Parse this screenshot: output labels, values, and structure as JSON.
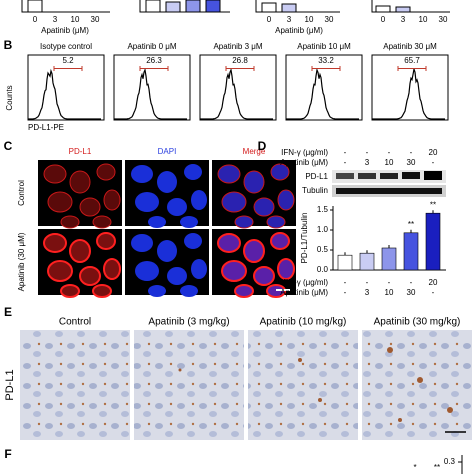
{
  "top_panels": [
    {
      "ticks": [
        "0",
        "3",
        "10",
        "30"
      ],
      "xlabel": "Apatinib (μM)"
    },
    {
      "ticks": [
        "0",
        "3",
        "10",
        "30"
      ],
      "xlabel": "Apatinib (μM)"
    },
    {
      "ticks": [
        "0",
        "3",
        "10",
        "30"
      ]
    }
  ],
  "panel_b": {
    "label": "B",
    "ylabel": "Counts",
    "xlabel": "PD-L1-PE",
    "histograms": [
      {
        "title": "Isotype control",
        "value": 5.2
      },
      {
        "title": "Apatinib 0 μM",
        "value": 26.3
      },
      {
        "title": "Apatinib 3 μM",
        "value": 26.8
      },
      {
        "title": "Apatinib 10 μM",
        "value": 33.2
      },
      {
        "title": "Apatinib 30 μM",
        "value": 65.7
      }
    ]
  },
  "panel_c": {
    "label": "C",
    "channels": [
      "PD-L1",
      "DAPI",
      "Merge"
    ],
    "rows": [
      "Control",
      "Apatinib (30 μM)"
    ]
  },
  "panel_d": {
    "label": "D",
    "blot": {
      "rows": [
        {
          "name": "IFN-γ (μg/ml)",
          "cells": [
            "-",
            "-",
            "-",
            "-",
            "20"
          ]
        },
        {
          "name": "Apatinib (μM)",
          "cells": [
            "-",
            "3",
            "10",
            "30",
            "-"
          ]
        }
      ],
      "bands": [
        "PD-L1",
        "Tubulin"
      ]
    },
    "chart": {
      "type": "bar",
      "ylabel": "PD-L1/Tubulin",
      "values": [
        0.37,
        0.42,
        0.55,
        0.93,
        1.42
      ],
      "colors": [
        "#ffffff",
        "#c9ccf3",
        "#8d95ea",
        "#4653df",
        "#1a1fbf"
      ],
      "significance": [
        null,
        null,
        null,
        "**",
        "**"
      ],
      "ylim": [
        0,
        1.6
      ],
      "yticks": [
        {
          "value": 0,
          "label": "0.0"
        },
        0.5,
        {
          "value": 1,
          "label": "1.0"
        },
        1.5
      ]
    }
  },
  "panel_e": {
    "label": "E",
    "ylabel": "PD-L1",
    "columns": [
      "Control",
      "Apatinib (3 mg/kg)",
      "Apatinib (10 mg/kg)",
      "Apatinib (30 mg/kg)"
    ]
  },
  "panel_f": {
    "label": "F",
    "ytick": 0.3,
    "significance": [
      "*",
      "**"
    ]
  }
}
